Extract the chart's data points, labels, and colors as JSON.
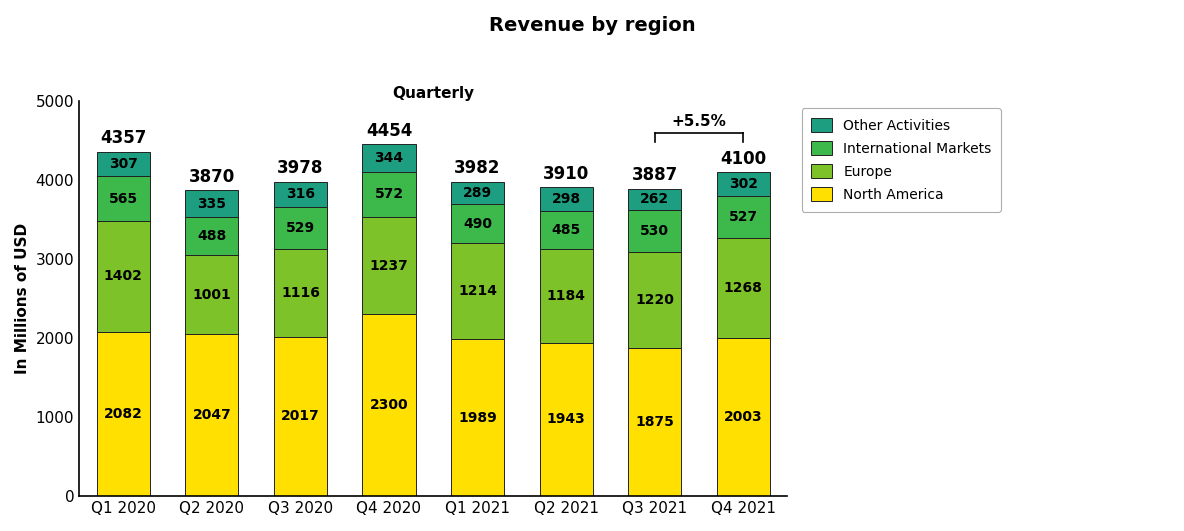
{
  "quarters": [
    "Q1 2020",
    "Q2 2020",
    "Q3 2020",
    "Q4 2020",
    "Q1 2021",
    "Q2 2021",
    "Q3 2021",
    "Q4 2021"
  ],
  "north_america": [
    2082,
    2047,
    2017,
    2300,
    1989,
    1943,
    1875,
    2003
  ],
  "europe": [
    1402,
    1001,
    1116,
    1237,
    1214,
    1184,
    1220,
    1268
  ],
  "intl_markets": [
    565,
    488,
    529,
    572,
    490,
    485,
    530,
    527
  ],
  "other": [
    307,
    335,
    316,
    344,
    289,
    298,
    262,
    302
  ],
  "totals": [
    4357,
    3870,
    3978,
    4454,
    3982,
    3910,
    3887,
    4100
  ],
  "colors": {
    "north_america": "#FFE000",
    "europe": "#7DC228",
    "intl_markets": "#3CB94A",
    "other": "#1E9E80"
  },
  "title": "Revenue by region",
  "subtitle": "Quarterly",
  "ylabel": "In Millions of USD",
  "ylim": [
    0,
    5000
  ],
  "yticks": [
    0,
    1000,
    2000,
    3000,
    4000,
    5000
  ],
  "legend_labels": [
    "Other Activities",
    "International Markets",
    "Europe",
    "North America"
  ],
  "annotation_text": "+5.5%",
  "annotation_q3": 6,
  "annotation_q4": 7,
  "bar_edge_color": "#222222",
  "bar_linewidth": 0.7,
  "inner_fontsize": 10,
  "total_fontsize": 12
}
